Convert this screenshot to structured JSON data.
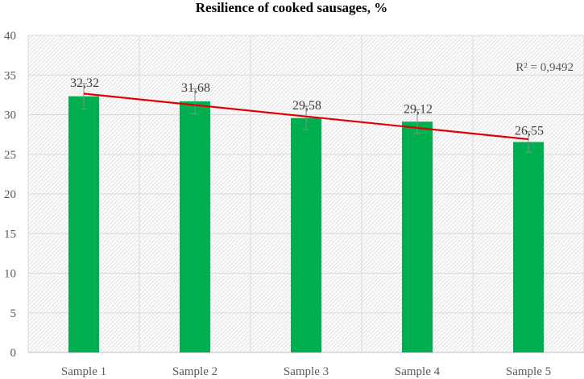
{
  "chart_data": {
    "type": "bar",
    "title": "Resilience of cooked sausages, %",
    "categories": [
      "Sample 1",
      "Sample 2",
      "Sample 3",
      "Sample 4",
      "Sample 5"
    ],
    "values": [
      32.32,
      31.68,
      29.58,
      29.12,
      26.55
    ],
    "data_labels": [
      "32,32",
      "31,68",
      "29,58",
      "29,12",
      "26,55"
    ],
    "error_bars": [
      1.6,
      1.6,
      1.5,
      1.5,
      1.3
    ],
    "ylim": [
      0,
      40
    ],
    "yticks": [
      "0",
      "5",
      "10",
      "15",
      "20",
      "25",
      "30",
      "35",
      "40"
    ],
    "grid": true,
    "trendline": {
      "type": "linear",
      "r_squared_label": "R² = 0,9492",
      "start": 32.65,
      "end": 26.9
    },
    "colors": {
      "bar": "#00b050",
      "trendline": "#e00000",
      "error_bar": "#8c8c8c",
      "grid": "#d9d9d9"
    }
  }
}
